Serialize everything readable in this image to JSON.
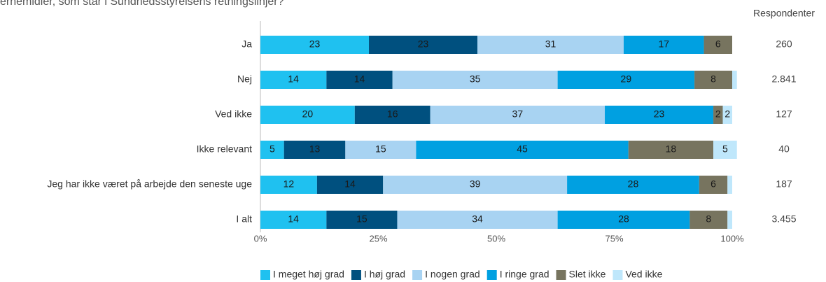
{
  "chart_data": {
    "type": "stacked-barh",
    "title": "ernemidler, som står i Sundhedsstyrelsens retningslinjer?",
    "categories": [
      "Ja",
      "Nej",
      "Ved ikke",
      "Ikke relevant",
      "Jeg har ikke været på arbejde den seneste uge",
      "I alt"
    ],
    "series": [
      {
        "name": "I meget høj grad",
        "color": "#1fc1f0",
        "values": [
          23,
          14,
          20,
          5,
          12,
          14
        ],
        "value_labels": [
          "23",
          "14",
          "20",
          "5",
          "12",
          "14"
        ]
      },
      {
        "name": "I høj grad",
        "color": "#00507f",
        "values": [
          23,
          14,
          16,
          13,
          14,
          15
        ],
        "value_labels": [
          "23",
          "14",
          "16",
          "13",
          "14",
          "15"
        ]
      },
      {
        "name": "I nogen grad",
        "color": "#a8d3f2",
        "values": [
          31,
          35,
          37,
          15,
          39,
          34
        ],
        "value_labels": [
          "31",
          "35",
          "37",
          "15",
          "39",
          "34"
        ]
      },
      {
        "name": "I ringe grad",
        "color": "#00a0e1",
        "values": [
          17,
          29,
          23,
          45,
          28,
          28
        ],
        "value_labels": [
          "17",
          "29",
          "23",
          "45",
          "28",
          "28"
        ]
      },
      {
        "name": "Slet ikke",
        "color": "#77745f",
        "values": [
          6,
          8,
          2,
          18,
          6,
          8
        ],
        "value_labels": [
          "6",
          "8",
          "2",
          "18",
          "6",
          "8"
        ]
      },
      {
        "name": "Ved ikke",
        "color": "#bfe7fb",
        "values": [
          0,
          1,
          2,
          5,
          1,
          1
        ],
        "value_labels": [
          null,
          null,
          "2",
          "5",
          null,
          null
        ]
      }
    ],
    "xlim": [
      0,
      100
    ],
    "xticks": [
      {
        "value": 0,
        "label": "0%"
      },
      {
        "value": 25,
        "label": "25%"
      },
      {
        "value": 50,
        "label": "50%"
      },
      {
        "value": 75,
        "label": "75%"
      },
      {
        "value": 100,
        "label": "100%"
      }
    ],
    "respondents_label": "Respondenter",
    "respondents": [
      "260",
      "2.841",
      "127",
      "40",
      "187",
      "3.455"
    ],
    "legend": "bottom"
  }
}
